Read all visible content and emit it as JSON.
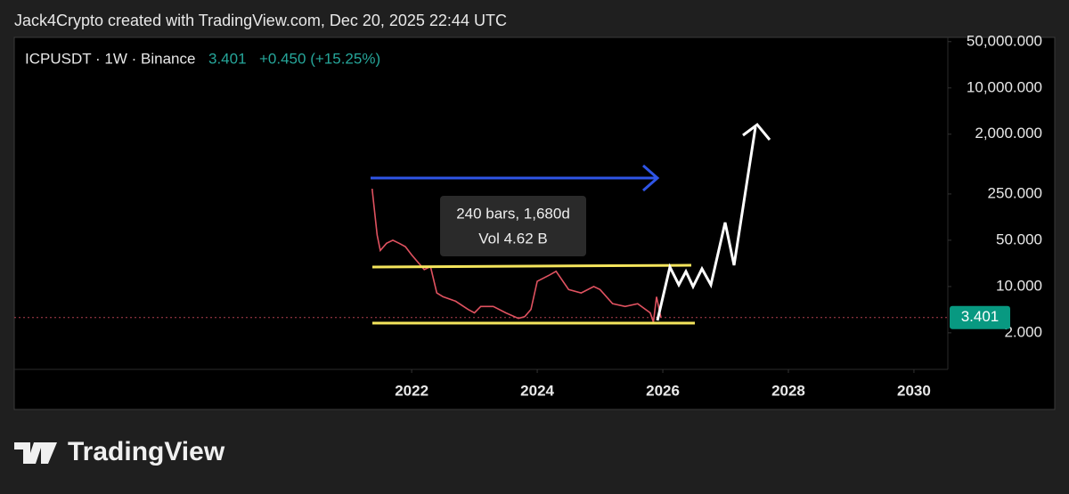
{
  "header": {
    "credit": "Jack4Crypto created with TradingView.com, Dec 20, 2025 22:44 UTC"
  },
  "chart_data": {
    "type": "line",
    "symbol": "ICPUSDT · 1W · Binance",
    "last_price": 3.401,
    "change": "+0.450 (+15.25%)",
    "measure": {
      "bars": "240 bars, 1,680d",
      "volume": "Vol 4.62 B"
    },
    "log_scale": true,
    "grid": false,
    "xlim": [
      2015.67,
      2030.54
    ],
    "xticks": [
      2022,
      2024,
      2026,
      2028,
      2030
    ],
    "ylim": [
      0.56,
      58000
    ],
    "yticks": [
      {
        "value": 2,
        "label": "2.000"
      },
      {
        "value": 10,
        "label": "10.000"
      },
      {
        "value": 50,
        "label": "50.000"
      },
      {
        "value": 250,
        "label": "250.000"
      },
      {
        "value": 2000,
        "label": "2,000.000"
      },
      {
        "value": 10000,
        "label": "10,000.000"
      },
      {
        "value": 50000,
        "label": "50,000.000"
      }
    ],
    "x": [
      2021.37,
      2021.45,
      2021.5,
      2021.6,
      2021.7,
      2021.8,
      2021.9,
      2022.0,
      2022.2,
      2022.3,
      2022.4,
      2022.5,
      2022.7,
      2022.9,
      2023.0,
      2023.1,
      2023.3,
      2023.5,
      2023.7,
      2023.8,
      2023.9,
      2024.0,
      2024.2,
      2024.3,
      2024.5,
      2024.7,
      2024.9,
      2025.0,
      2025.2,
      2025.4,
      2025.6,
      2025.8,
      2025.85,
      2025.9,
      2025.97
    ],
    "series": [
      {
        "color": "#e05260",
        "values": [
          300,
          60,
          35,
          45,
          50,
          45,
          40,
          30,
          18,
          20,
          8,
          7,
          6,
          4.5,
          4,
          5,
          5,
          4,
          3.3,
          3.5,
          4.5,
          12,
          15,
          17,
          9,
          8,
          10,
          9,
          5.5,
          5,
          5.5,
          4,
          2.9,
          7,
          3.4
        ]
      }
    ]
  },
  "footer": {
    "logo": "TradingView"
  }
}
